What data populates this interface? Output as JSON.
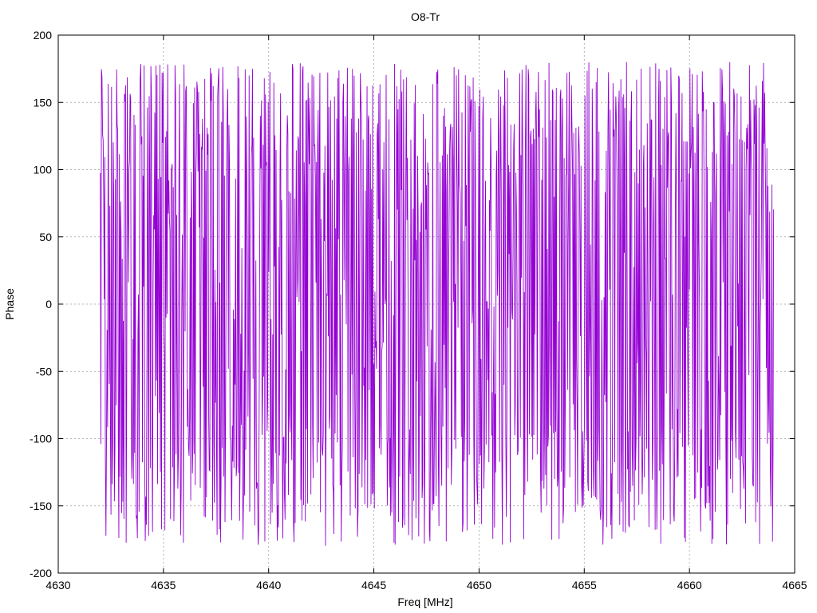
{
  "chart_data": {
    "type": "line",
    "title": "O8-Tr",
    "xlabel": "Freq [MHz]",
    "ylabel": "Phase",
    "xlim": [
      4630,
      4665
    ],
    "ylim": [
      -200,
      200
    ],
    "xticks": [
      4630,
      4635,
      4640,
      4645,
      4650,
      4655,
      4660,
      4665
    ],
    "yticks": [
      -200,
      -150,
      -100,
      -50,
      0,
      50,
      100,
      150,
      200
    ],
    "xtick_labels": [
      "4630",
      "4635",
      "4640",
      "4645",
      "4650",
      "4655",
      "4660",
      "4665"
    ],
    "ytick_labels": [
      "-200",
      "-150",
      "-100",
      "-50",
      "0",
      "50",
      "100",
      "150",
      "200"
    ],
    "grid": true,
    "series": [
      {
        "color": "#9400d3",
        "x_start": 4632,
        "x_end": 4664,
        "points": 1200,
        "value_range": [
          -180,
          180
        ],
        "description": "phase values wrapping rapidly between -180 and 180 degrees"
      }
    ]
  }
}
